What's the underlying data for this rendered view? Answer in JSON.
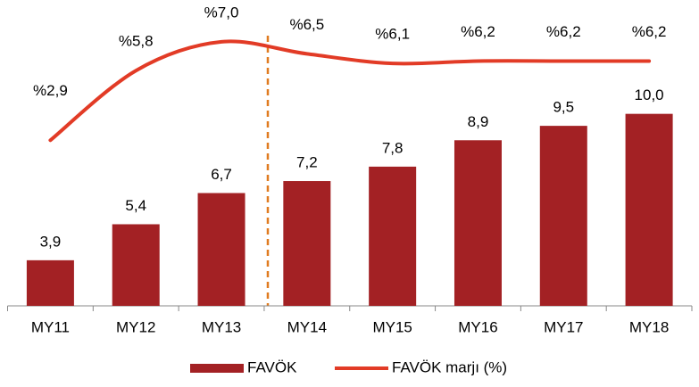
{
  "chart_data": {
    "type": "bar",
    "categories": [
      "MY11",
      "MY12",
      "MY13",
      "MY14",
      "MY15",
      "MY16",
      "MY17",
      "MY18"
    ],
    "series": [
      {
        "name": "FAVÖK",
        "type": "bar",
        "color": "#a32124",
        "values": [
          3.9,
          5.4,
          6.7,
          7.2,
          7.8,
          8.9,
          9.5,
          10.0
        ],
        "value_labels": [
          "3,9",
          "5,4",
          "6,7",
          "7,2",
          "7,8",
          "8,9",
          "9,5",
          "10,0"
        ]
      },
      {
        "name": "FAVÖK marjı (%)",
        "type": "line",
        "axis": "y2",
        "color": "#e23b26",
        "values": [
          2.9,
          5.8,
          7.0,
          6.5,
          6.1,
          6.2,
          6.2,
          6.2
        ],
        "value_labels": [
          "%2,9",
          "%5,8",
          "%7,0",
          "%6,5",
          "%6,1",
          "%6,2",
          "%6,2",
          "%6,2"
        ]
      }
    ],
    "ylim": [
      2,
      14
    ],
    "y2lim": [
      -4,
      8
    ],
    "legend": "bottom"
  }
}
